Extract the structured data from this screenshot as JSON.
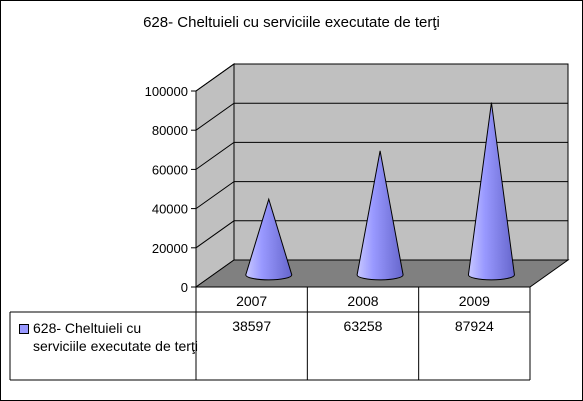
{
  "chart_data": {
    "type": "bar",
    "subtype": "3d-cone",
    "title": "628- Cheltuieli cu serviciile executate de terţi",
    "categories": [
      "2007",
      "2008",
      "2009"
    ],
    "series": [
      {
        "name": "628- Cheltuieli cu serviciile executate de terţi",
        "values": [
          38597,
          63258,
          87924
        ]
      }
    ],
    "values_display": [
      "38597",
      "63258",
      "87924"
    ],
    "ylim": [
      0,
      100000
    ],
    "yticks": [
      "0",
      "20000",
      "40000",
      "60000",
      "80000",
      "100000"
    ],
    "grid": true,
    "legend": "data-table-left",
    "colors": {
      "series": "#9999ff",
      "walls": "#c0c0c0",
      "floor": "#808080"
    }
  }
}
